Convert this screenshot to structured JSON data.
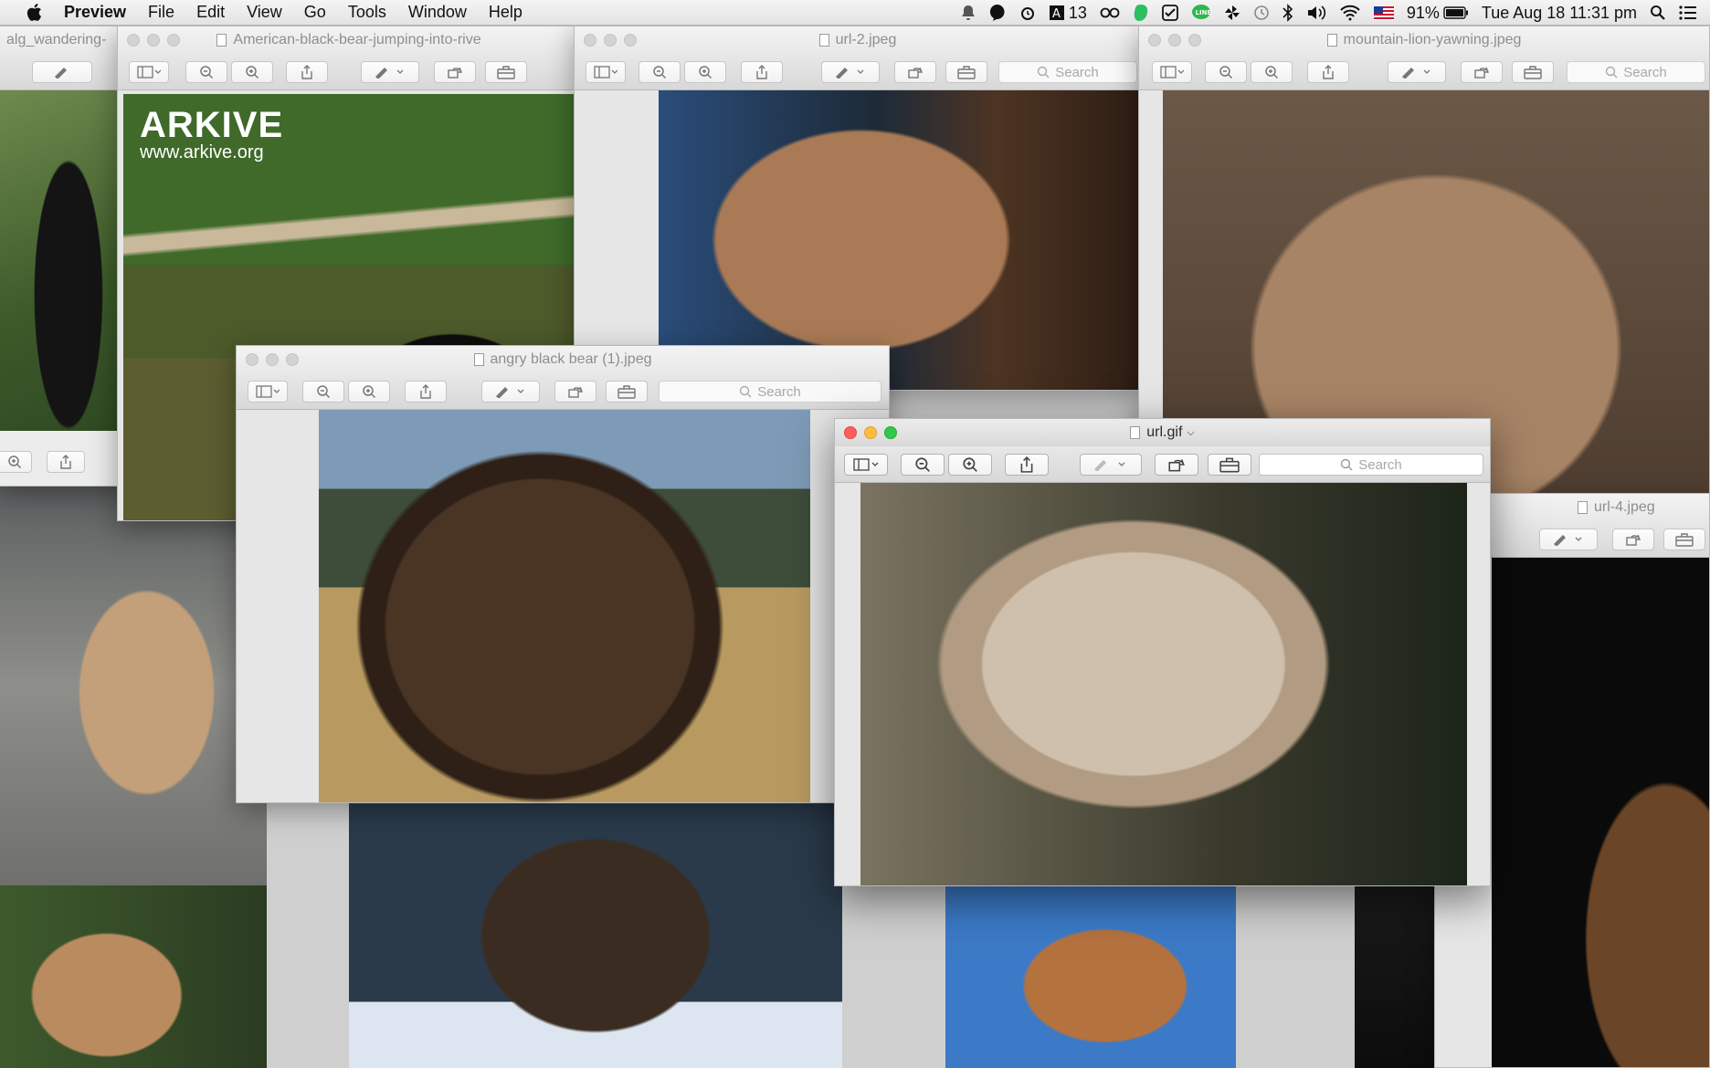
{
  "menubar": {
    "app": "Preview",
    "items": [
      "File",
      "Edit",
      "View",
      "Go",
      "Tools",
      "Window",
      "Help"
    ],
    "status": {
      "notification_count": "13",
      "battery": "91%",
      "datetime": "Tue Aug 18  11:31 pm"
    }
  },
  "windows": {
    "alg": {
      "title": "alg_wandering-"
    },
    "arkive": {
      "title": "American-black-bear-jumping-into-rive",
      "watermark": "ARKIVE",
      "watermark_url": "www.arkive.org"
    },
    "url2": {
      "title": "url-2.jpeg",
      "search": "Search"
    },
    "lion": {
      "title": "mountain-lion-yawning.jpeg",
      "search": "Search"
    },
    "angry": {
      "title": "angry black bear (1).jpeg",
      "search": "Search"
    },
    "urlgif": {
      "title": "url.gif",
      "search": "Search"
    },
    "url4": {
      "title": "url-4.jpeg"
    }
  },
  "icons": [
    "apple-icon",
    "sidebar-icon",
    "zoom-out-icon",
    "zoom-in-icon",
    "share-icon",
    "markup-icon",
    "rotate-icon",
    "toolbox-icon",
    "search-icon"
  ],
  "colors": {
    "close": "#fc605c",
    "minimize": "#fdbc40",
    "maximize": "#34c84a"
  }
}
